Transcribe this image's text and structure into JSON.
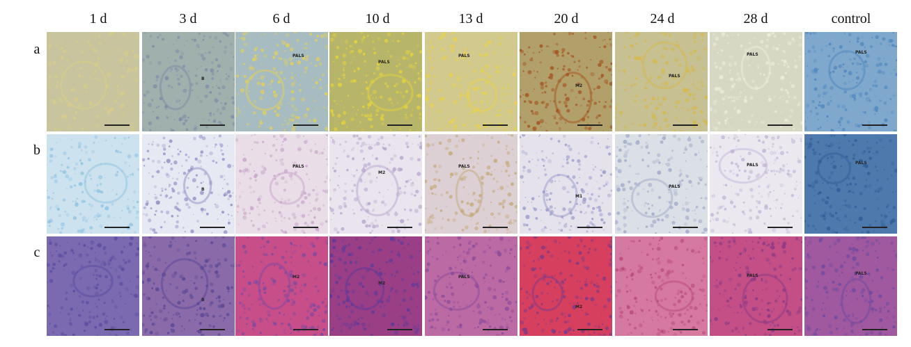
{
  "columns": [
    "1 d",
    "3 d",
    "6 d",
    "10 d",
    "13 d",
    "20 d",
    "24 d",
    "28 d",
    "control"
  ],
  "rows": [
    "a",
    "b",
    "c"
  ],
  "panel_labels": {
    "a": [
      "",
      "B",
      "PALS",
      "PALS",
      "PALS",
      "M2",
      "PALS",
      "PALS",
      "PALS"
    ],
    "b": [
      "",
      "B",
      "PALS",
      "M2",
      "PALS",
      "M1",
      "PALS",
      "PALS",
      "PALS"
    ],
    "c": [
      "",
      "B",
      "M2",
      "M2",
      "PALS",
      "M2",
      "",
      "PALS",
      "PALS"
    ]
  },
  "colors": {
    "row_a": [
      "#c7c49e",
      "#9fb0ad",
      "#a7bcc0",
      "#b7b56a",
      "#d1c98e",
      "#b1a06a",
      "#c6c092",
      "#d6d8c4",
      "#7fa8cc"
    ],
    "row_b": [
      "#cde2ef",
      "#e6e8f2",
      "#e9dde8",
      "#eae4ee",
      "#ddd0d4",
      "#e5e2ec",
      "#dbe0e6",
      "#ece8f0",
      "#4e79ad"
    ],
    "row_c": [
      "#7b6ab0",
      "#8a6aa8",
      "#c84e8a",
      "#9a3f86",
      "#bc6aa4",
      "#d63f5e",
      "#d679a0",
      "#c44f87",
      "#a0589e"
    ],
    "accent_a": [
      "#d8cd86",
      "#7f8aa6",
      "#e3d05a",
      "#e8d43a",
      "#e9d24a",
      "#a5521e",
      "#d7b94a",
      "#eeeeda",
      "#4f86bf"
    ],
    "accent_b": [
      "#8fc3e2",
      "#8f8fc6",
      "#c7a6c9",
      "#b7a6cd",
      "#c4aa7a",
      "#9a9acb",
      "#a0a9c8",
      "#c2b6d5",
      "#2f5d97"
    ],
    "accent_c": [
      "#5c4aa0",
      "#5a4697",
      "#7a4aa0",
      "#5b3a9a",
      "#8a4b9a",
      "#7a3a8a",
      "#b84a7c",
      "#8a3a86",
      "#6c4aa0"
    ]
  }
}
